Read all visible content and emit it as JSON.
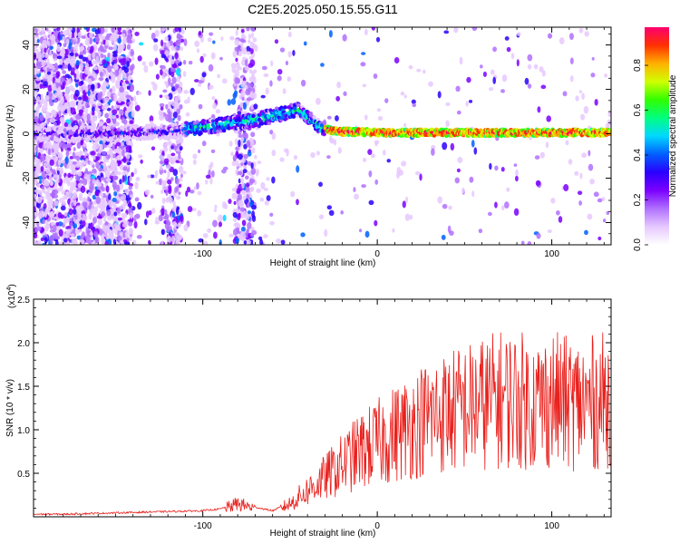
{
  "title": "C2E5.2025.050.15.55.G11",
  "chart_data": [
    {
      "type": "heatmap",
      "xlabel": "Height of straight line (km)",
      "ylabel": "Frequency (Hz)",
      "xlim": [
        -197,
        134
      ],
      "ylim": [
        -50,
        48
      ],
      "xticks": [
        -100,
        0,
        100
      ],
      "xtick_labels": [
        "-100",
        "0",
        "100"
      ],
      "yticks": [
        -40,
        -20,
        0,
        20,
        40
      ],
      "ytick_labels": [
        "-40",
        "-20",
        "0",
        "20",
        "40"
      ],
      "colorbar": {
        "label": "Normalized spectral amplitude",
        "range": [
          0,
          0.97
        ],
        "ticks": [
          0.0,
          0.2,
          0.4,
          0.6,
          0.8
        ],
        "tick_labels": [
          "0.0",
          "0.2",
          "0.4",
          "0.6",
          "0.8"
        ],
        "colors": [
          "#ffffff",
          "#e6c8ff",
          "#b070ff",
          "#7a00ff",
          "#2a00ff",
          "#0060ff",
          "#00d8ff",
          "#00ff80",
          "#30ff00",
          "#d0ff00",
          "#ffb000",
          "#ff3000",
          "#ff0070"
        ]
      },
      "ridge": {
        "x": [
          -197,
          -160,
          -140,
          -120,
          -100,
          -80,
          -60,
          -45,
          -35,
          -30,
          -20,
          0,
          50,
          100,
          134
        ],
        "y": [
          0,
          0,
          0.5,
          1,
          3,
          5,
          8,
          11,
          4,
          2,
          1,
          0.5,
          0.5,
          0.5,
          0.5
        ]
      }
    },
    {
      "type": "line",
      "xlabel": "Height of straight line (km)",
      "ylabel": "SNR (10 * v/v)",
      "y_multiplier_label": "(x10",
      "y_multiplier_exp": "4",
      "y_multiplier_close": ")",
      "xlim": [
        -197,
        134
      ],
      "ylim": [
        0,
        2.5
      ],
      "xticks": [
        -100,
        0,
        100
      ],
      "xtick_labels": [
        "-100",
        "0",
        "100"
      ],
      "yticks": [
        0.5,
        1.0,
        1.5,
        2.0,
        2.5
      ],
      "ytick_labels": [
        "0.5",
        "1.0",
        "1.5",
        "2.0",
        "2.5"
      ],
      "color": "#e8201c",
      "series": [
        {
          "x": [
            -197,
            -180,
            -160,
            -140,
            -120,
            -100,
            -90,
            -80,
            -70,
            -60,
            -50,
            -40,
            -30,
            -20,
            -10,
            0,
            10,
            20,
            30,
            40,
            50,
            60,
            70,
            80,
            90,
            100,
            110,
            120,
            134
          ],
          "y": [
            0.02,
            0.02,
            0.03,
            0.04,
            0.05,
            0.06,
            0.08,
            0.15,
            0.1,
            0.06,
            0.15,
            0.3,
            0.45,
            0.6,
            0.75,
            0.85,
            0.95,
            1.05,
            1.15,
            1.2,
            1.25,
            1.3,
            1.35,
            1.35,
            1.3,
            1.35,
            1.3,
            1.3,
            1.35
          ]
        }
      ]
    }
  ]
}
